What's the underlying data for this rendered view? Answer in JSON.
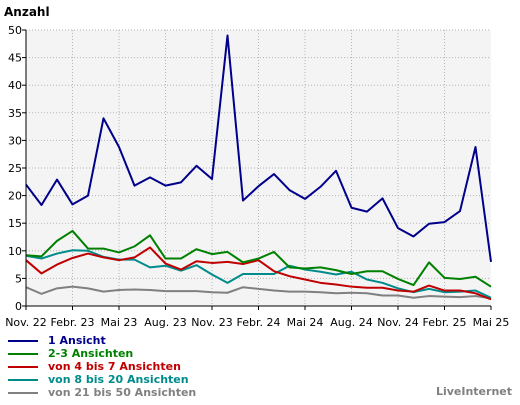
{
  "chart_data": {
    "type": "line",
    "title": "",
    "ylabel": "Anzahl",
    "xlabel": "",
    "ylim": [
      0,
      50
    ],
    "y_ticks": [
      0,
      5,
      10,
      15,
      20,
      25,
      30,
      35,
      40,
      45,
      50
    ],
    "x_tick_labels": [
      "Nov. 22",
      "Febr. 23",
      "Mai 23",
      "Aug. 23",
      "Nov. 23",
      "Febr. 24",
      "Mai 24",
      "Aug. 24",
      "Nov. 24",
      "Febr. 25",
      "Mai 25"
    ],
    "grid": true,
    "legend_position": "bottom-left",
    "series": [
      {
        "name": "1 Ansicht",
        "color": "#00008b",
        "values": [
          22,
          18.3,
          22.9,
          18.4,
          20,
          34,
          28.8,
          21.8,
          23.3,
          21.8,
          22.4,
          25.4,
          23,
          49,
          19.1,
          21.7,
          23.9,
          21,
          19.4,
          21.6,
          24.5,
          17.8,
          17.1,
          19.5,
          14.1,
          12.6,
          14.9,
          15.2,
          17.2,
          28.8,
          8
        ]
      },
      {
        "name": "2-3 Ansichten",
        "color": "#008000",
        "values": [
          9.2,
          9,
          11.8,
          13.6,
          10.4,
          10.4,
          9.7,
          10.8,
          12.8,
          8.6,
          8.6,
          10.3,
          9.4,
          9.8,
          7.9,
          8.6,
          9.8,
          7,
          6.8,
          7,
          6.5,
          5.8,
          6.3,
          6.3,
          4.9,
          3.8,
          7.9,
          5.1,
          4.9,
          5.3,
          3.5
        ]
      },
      {
        "name": "von 4 bis 7 Ansichten",
        "color": "#c00000",
        "values": [
          8.3,
          5.9,
          7.5,
          8.7,
          9.5,
          8.8,
          8.3,
          8.8,
          10.6,
          7.7,
          6.6,
          8.1,
          7.8,
          8,
          7.6,
          8.3,
          6.3,
          5.4,
          4.8,
          4.2,
          3.9,
          3.5,
          3.3,
          3.3,
          2.8,
          2.6,
          3.7,
          2.8,
          2.8,
          2.3,
          1.2
        ]
      },
      {
        "name": "von 8 bis 20 Ansichten",
        "color": "#008b8b",
        "values": [
          9.1,
          8.6,
          9.5,
          10.1,
          10,
          8.9,
          8.4,
          8.4,
          7,
          7.3,
          6.4,
          7.4,
          5.7,
          4.2,
          5.8,
          5.8,
          5.8,
          7.3,
          6.6,
          6.2,
          5.7,
          6.2,
          4.8,
          4.2,
          3.2,
          2.5,
          3.1,
          2.5,
          2.6,
          2.8,
          1.5
        ]
      },
      {
        "name": "von 21 bis 50 Ansichten",
        "color": "#808080",
        "values": [
          3.4,
          2.2,
          3.2,
          3.5,
          3.2,
          2.6,
          2.9,
          3,
          2.9,
          2.7,
          2.7,
          2.7,
          2.5,
          2.4,
          3.4,
          3.1,
          2.8,
          2.6,
          2.6,
          2.5,
          2.3,
          2.4,
          2.3,
          1.9,
          1.9,
          1.5,
          1.8,
          1.7,
          1.6,
          1.8,
          1.4
        ]
      }
    ]
  },
  "brand": "LiveInternet"
}
